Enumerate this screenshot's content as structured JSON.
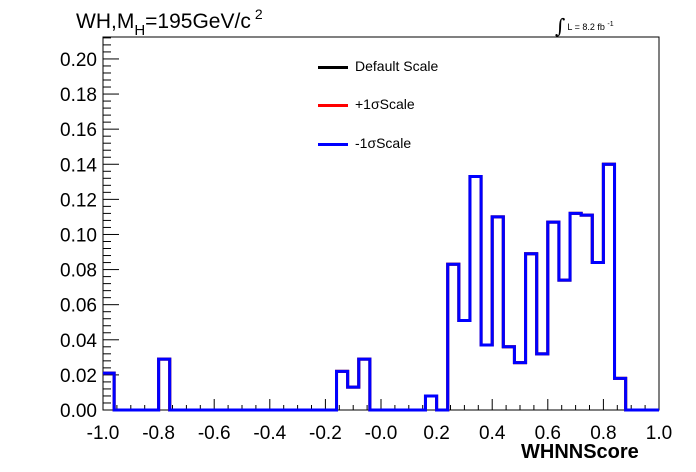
{
  "chart_data": {
    "type": "histogram",
    "title": {
      "prefix": "WH,M",
      "subscript": "H",
      "value": "=195GeV/c",
      "superscript": "2"
    },
    "luminosity": {
      "text": "L = 8.2 fb",
      "superscript": "-1"
    },
    "xlabel": "WHNNScore",
    "ylabel": "",
    "xlim": [
      -1.0,
      1.0
    ],
    "ylim": [
      0.0,
      0.2125
    ],
    "x_ticks": [
      "-1.0",
      "-0.8",
      "-0.6",
      "-0.4",
      "-0.2",
      "-0.0",
      "0.2",
      "0.4",
      "0.6",
      "0.8",
      "1.0"
    ],
    "y_ticks": [
      "0.00",
      "0.02",
      "0.04",
      "0.06",
      "0.08",
      "0.10",
      "0.12",
      "0.14",
      "0.16",
      "0.18",
      "0.20"
    ],
    "bin_edges": [
      -1.0,
      -0.96,
      -0.92,
      -0.88,
      -0.84,
      -0.8,
      -0.76,
      -0.72,
      -0.68,
      -0.64,
      -0.6,
      -0.56,
      -0.52,
      -0.48,
      -0.44,
      -0.4,
      -0.36,
      -0.32,
      -0.28,
      -0.24,
      -0.2,
      -0.16,
      -0.12,
      -0.08,
      -0.04,
      0.0,
      0.04,
      0.08,
      0.12,
      0.16,
      0.2,
      0.24,
      0.28,
      0.32,
      0.36,
      0.4,
      0.44,
      0.48,
      0.52,
      0.56,
      0.6,
      0.64,
      0.68,
      0.72,
      0.76,
      0.8,
      0.84,
      0.88,
      0.92,
      0.96,
      1.0
    ],
    "series": [
      {
        "name": "Default Scale",
        "color": "#000000",
        "values": [
          0.021,
          0.0,
          0.0,
          0.0,
          0.0,
          0.029,
          0.0,
          0.0,
          0.0,
          0.0,
          0.0,
          0.0,
          0.0,
          0.0,
          0.0,
          0.0,
          0.0,
          0.0,
          0.0,
          0.0,
          0.0,
          0.022,
          0.013,
          0.029,
          0.0,
          0.0,
          0.0,
          0.0,
          0.0,
          0.008,
          0.0,
          0.083,
          0.051,
          0.133,
          0.037,
          0.11,
          0.036,
          0.027,
          0.089,
          0.032,
          0.107,
          0.074,
          0.112,
          0.111,
          0.084,
          0.14,
          0.018,
          0.0,
          0.0,
          0.0
        ]
      },
      {
        "name": "+1σScale",
        "color": "#ff0000",
        "values": [
          0.021,
          0.0,
          0.0,
          0.0,
          0.0,
          0.029,
          0.0,
          0.0,
          0.0,
          0.0,
          0.0,
          0.0,
          0.0,
          0.0,
          0.0,
          0.0,
          0.0,
          0.0,
          0.0,
          0.0,
          0.0,
          0.022,
          0.013,
          0.029,
          0.0,
          0.0,
          0.0,
          0.0,
          0.0,
          0.008,
          0.0,
          0.083,
          0.051,
          0.133,
          0.037,
          0.11,
          0.036,
          0.027,
          0.089,
          0.032,
          0.107,
          0.074,
          0.112,
          0.111,
          0.084,
          0.14,
          0.018,
          0.0,
          0.0,
          0.0
        ]
      },
      {
        "name": "-1σScale",
        "color": "#0000ff",
        "values": [
          0.021,
          0.0,
          0.0,
          0.0,
          0.0,
          0.029,
          0.0,
          0.0,
          0.0,
          0.0,
          0.0,
          0.0,
          0.0,
          0.0,
          0.0,
          0.0,
          0.0,
          0.0,
          0.0,
          0.0,
          0.0,
          0.022,
          0.013,
          0.029,
          0.0,
          0.0,
          0.0,
          0.0,
          0.0,
          0.008,
          0.0,
          0.083,
          0.051,
          0.133,
          0.037,
          0.11,
          0.036,
          0.027,
          0.089,
          0.032,
          0.107,
          0.074,
          0.112,
          0.111,
          0.084,
          0.14,
          0.018,
          0.0,
          0.0,
          0.0
        ]
      }
    ],
    "legend_position": "top-center",
    "grid": false
  }
}
